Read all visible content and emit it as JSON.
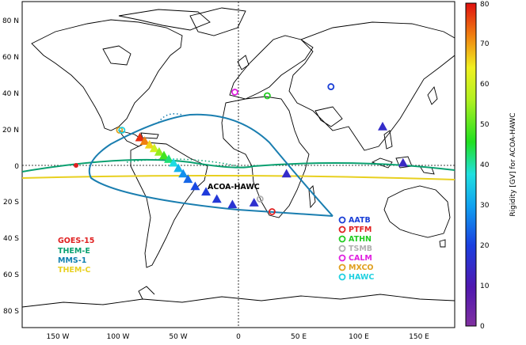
{
  "map": {
    "lon_range": [
      -180,
      180
    ],
    "lat_range": [
      -90,
      90
    ],
    "x_ticks": [
      {
        "lon": -150,
        "label": "150 W"
      },
      {
        "lon": -100,
        "label": "100 W"
      },
      {
        "lon": -50,
        "label": "50 W"
      },
      {
        "lon": 0,
        "label": "0"
      },
      {
        "lon": 50,
        "label": "50 E"
      },
      {
        "lon": 100,
        "label": "100 E"
      },
      {
        "lon": 150,
        "label": "150 E"
      }
    ],
    "y_ticks": [
      {
        "lat": 80,
        "label": "80 N"
      },
      {
        "lat": 60,
        "label": "60 N"
      },
      {
        "lat": 40,
        "label": "40 N"
      },
      {
        "lat": 20,
        "label": "20 N"
      },
      {
        "lat": 0,
        "label": "0"
      },
      {
        "lat": -20,
        "label": "20 S"
      },
      {
        "lat": -40,
        "label": "40 S"
      },
      {
        "lat": -60,
        "label": "60 S"
      },
      {
        "lat": -80,
        "label": "80 S"
      }
    ]
  },
  "colorbar": {
    "label": "Rigidity [GV] for ACOA-HAWC",
    "min": 0,
    "max": 80,
    "ticks": [
      "0",
      "10",
      "20",
      "30",
      "40",
      "50",
      "60",
      "70",
      "80"
    ]
  },
  "annotation": "ACOA-HAWC",
  "stations": [
    {
      "name": "AATB",
      "color": "#1a3fd6",
      "lon": 77,
      "lat": 43
    },
    {
      "name": "PTFM",
      "color": "#e02020",
      "lon": 28,
      "lat": -26
    },
    {
      "name": "ATHN",
      "color": "#22cc22",
      "lon": 24,
      "lat": 38
    },
    {
      "name": "TSMB",
      "color": "#b0b0b0",
      "lon": 18,
      "lat": -19
    },
    {
      "name": "CALM",
      "color": "#e020e0",
      "lon": -3,
      "lat": 40
    },
    {
      "name": "MXCO",
      "color": "#e0a020",
      "lon": -99,
      "lat": 19
    },
    {
      "name": "HAWC",
      "color": "#20d0e0",
      "lon": -97,
      "lat": 19
    }
  ],
  "satellites": [
    {
      "name": "GOES-15",
      "color": "#e02020"
    },
    {
      "name": "THEM-E",
      "color": "#0aa070"
    },
    {
      "name": "MMS-1",
      "color": "#1080b0"
    },
    {
      "name": "THEM-C",
      "color": "#e8d020"
    }
  ],
  "rigidity_points": [
    {
      "lon": -82,
      "lat": 15,
      "rig": 78
    },
    {
      "lon": -78,
      "lat": 13,
      "rig": 72
    },
    {
      "lon": -74,
      "lat": 11,
      "rig": 66
    },
    {
      "lon": -70,
      "lat": 9,
      "rig": 60
    },
    {
      "lon": -66,
      "lat": 7,
      "rig": 54
    },
    {
      "lon": -62,
      "lat": 5,
      "rig": 48
    },
    {
      "lon": -58,
      "lat": 3,
      "rig": 42
    },
    {
      "lon": -54,
      "lat": 1,
      "rig": 37
    },
    {
      "lon": -50,
      "lat": -2,
      "rig": 32
    },
    {
      "lon": -46,
      "lat": -5,
      "rig": 28
    },
    {
      "lon": -42,
      "lat": -8,
      "rig": 24
    },
    {
      "lon": -36,
      "lat": -12,
      "rig": 21
    },
    {
      "lon": -27,
      "lat": -15,
      "rig": 19
    },
    {
      "lon": -18,
      "lat": -19,
      "rig": 18
    },
    {
      "lon": -5,
      "lat": -22,
      "rig": 17
    },
    {
      "lon": 13,
      "lat": -21,
      "rig": 16
    },
    {
      "lon": 40,
      "lat": -5,
      "rig": 15
    },
    {
      "lon": 120,
      "lat": 21,
      "rig": 15
    },
    {
      "lon": 137,
      "lat": 1,
      "rig": 14
    }
  ]
}
